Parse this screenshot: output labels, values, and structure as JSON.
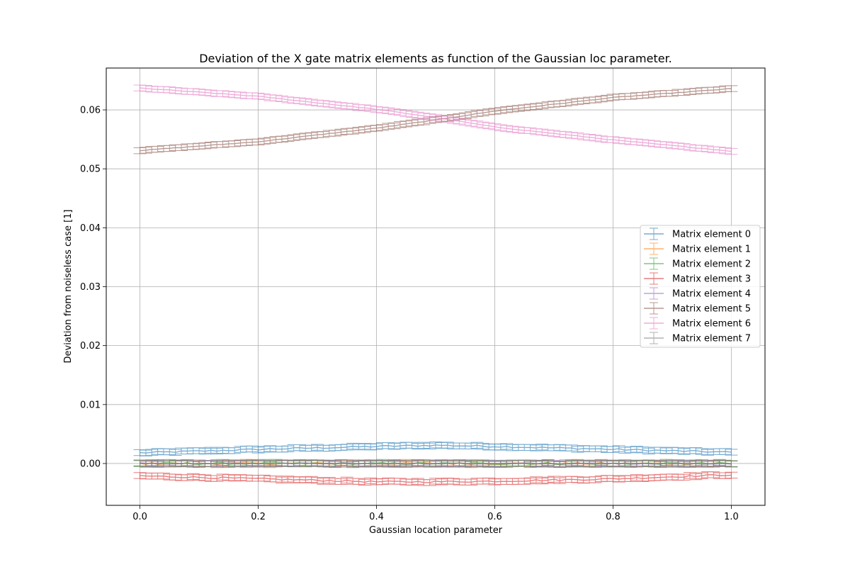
{
  "chart_data": {
    "type": "line",
    "title": "Deviation of the X gate matrix elements as function of the Gaussian loc parameter.",
    "xlabel": "Gaussian location parameter",
    "ylabel": "Deviation from noiseless case [1]",
    "xlim": [
      -0.057,
      1.057
    ],
    "ylim": [
      -0.0071,
      0.0671
    ],
    "xticks": [
      0.0,
      0.2,
      0.4,
      0.6,
      0.8,
      1.0
    ],
    "xtick_labels": [
      "0.0",
      "0.2",
      "0.4",
      "0.6",
      "0.8",
      "1.0"
    ],
    "yticks": [
      0.0,
      0.01,
      0.02,
      0.03,
      0.04,
      0.05,
      0.06
    ],
    "ytick_labels": [
      "0.00",
      "0.01",
      "0.02",
      "0.03",
      "0.04",
      "0.05",
      "0.06"
    ],
    "grid": true,
    "legend_position": "center-right",
    "x_range": [
      0.0,
      1.0
    ],
    "num_points": 101,
    "error_bar": 0.0005,
    "series": [
      {
        "name": "Matrix element 0",
        "color": "#1f77b4",
        "anchors": [
          [
            0.0,
            0.0018
          ],
          [
            0.2,
            0.0024
          ],
          [
            0.4,
            0.0029
          ],
          [
            0.5,
            0.0031
          ],
          [
            0.6,
            0.0029
          ],
          [
            0.8,
            0.0024
          ],
          [
            1.0,
            0.0019
          ]
        ],
        "noise": 0.00015
      },
      {
        "name": "Matrix element 1",
        "color": "#ff7f0e",
        "anchors": [
          [
            0.0,
            0.0
          ],
          [
            1.0,
            0.0
          ]
        ],
        "noise": 0.0002
      },
      {
        "name": "Matrix element 2",
        "color": "#2ca02c",
        "anchors": [
          [
            0.0,
            0.0
          ],
          [
            1.0,
            0.0
          ]
        ],
        "noise": 0.0002
      },
      {
        "name": "Matrix element 3",
        "color": "#d62728",
        "anchors": [
          [
            0.0,
            -0.0021
          ],
          [
            0.2,
            -0.0026
          ],
          [
            0.4,
            -0.0031
          ],
          [
            0.5,
            -0.0031
          ],
          [
            0.6,
            -0.003
          ],
          [
            0.8,
            -0.0026
          ],
          [
            1.0,
            -0.0019
          ]
        ],
        "noise": 0.00015
      },
      {
        "name": "Matrix element 4",
        "color": "#9467bd",
        "anchors": [
          [
            0.0,
            0.0
          ],
          [
            1.0,
            0.0
          ]
        ],
        "noise": 0.00012
      },
      {
        "name": "Matrix element 5",
        "color": "#8c564b",
        "anchors": [
          [
            0.0,
            0.0531
          ],
          [
            0.2,
            0.0546
          ],
          [
            0.4,
            0.0569
          ],
          [
            0.5,
            0.0583
          ],
          [
            0.6,
            0.0598
          ],
          [
            0.8,
            0.0621
          ],
          [
            1.0,
            0.0636
          ]
        ],
        "noise": 5e-05
      },
      {
        "name": "Matrix element 6",
        "color": "#e377c2",
        "anchors": [
          [
            0.0,
            0.0637
          ],
          [
            0.2,
            0.0623
          ],
          [
            0.4,
            0.0601
          ],
          [
            0.5,
            0.0587
          ],
          [
            0.6,
            0.0571
          ],
          [
            0.8,
            0.0549
          ],
          [
            1.0,
            0.053
          ]
        ],
        "noise": 5e-05
      },
      {
        "name": "Matrix element 7",
        "color": "#7f7f7f",
        "anchors": [
          [
            0.0,
            0.0
          ],
          [
            1.0,
            0.0
          ]
        ],
        "noise": 0.00012
      }
    ]
  }
}
